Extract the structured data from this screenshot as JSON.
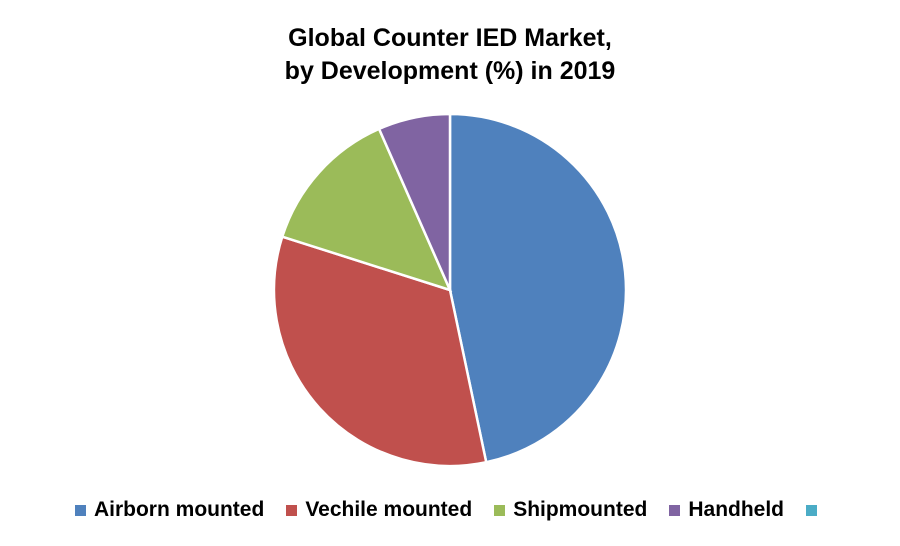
{
  "chart_data": {
    "type": "pie",
    "title": [
      "Global Counter IED Market,",
      "by Development (%) in 2019"
    ],
    "categories": [
      "Airborn mounted",
      "Vechile mounted",
      "Shipmounted",
      "Handheld",
      ""
    ],
    "values": [
      46.7,
      33.2,
      13.5,
      6.6,
      0
    ],
    "unit": "%",
    "colors": [
      "#4F81BD",
      "#C0504D",
      "#9BBB59",
      "#8064A2",
      "#4BACC6"
    ],
    "legend_position": "bottom",
    "start_angle": "top, clockwise"
  }
}
